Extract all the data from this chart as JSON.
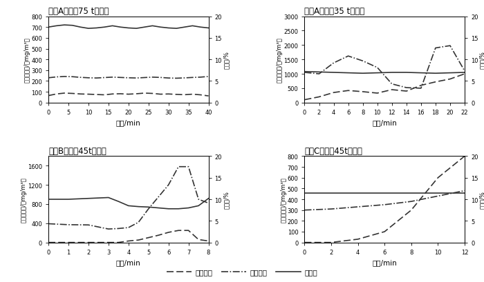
{
  "title_A75": "糖厂A数据（75 t锅炉）",
  "title_A35": "糖厂A数据（35 t锅炉）",
  "title_B45": "糖厂B数据（45t锅炉）",
  "title_C45": "糖厂C数据（45t锅炉）",
  "xlabel": "时间/min",
  "ylabel_left": "污染物浓度/（mg/m³）",
  "ylabel_right": "含氧量/%",
  "A75": {
    "time": [
      0,
      2,
      4,
      6,
      8,
      10,
      12,
      14,
      16,
      18,
      20,
      22,
      24,
      26,
      28,
      30,
      32,
      34,
      36,
      38,
      40
    ],
    "SO2": [
      65,
      80,
      88,
      85,
      80,
      78,
      75,
      72,
      80,
      82,
      78,
      82,
      88,
      85,
      78,
      80,
      76,
      73,
      78,
      72,
      62
    ],
    "CO": [
      230,
      238,
      242,
      240,
      234,
      230,
      228,
      232,
      236,
      233,
      230,
      228,
      232,
      236,
      233,
      228,
      226,
      229,
      233,
      236,
      242
    ],
    "O2": [
      17.5,
      17.8,
      18.0,
      17.9,
      17.5,
      17.2,
      17.3,
      17.5,
      17.8,
      17.5,
      17.3,
      17.2,
      17.5,
      17.8,
      17.5,
      17.3,
      17.2,
      17.5,
      17.8,
      17.5,
      17.3
    ],
    "ylim_left": [
      0,
      800
    ],
    "ylim_right": [
      0,
      20
    ],
    "yticks_left": [
      0,
      100,
      200,
      300,
      400,
      500,
      600,
      700,
      800
    ],
    "yticks_right": [
      0,
      5,
      10,
      15,
      20
    ],
    "xticks": [
      0,
      5,
      10,
      15,
      20,
      25,
      30,
      35,
      40
    ],
    "xlim": [
      0,
      40
    ]
  },
  "A35": {
    "time": [
      0,
      2,
      4,
      6,
      8,
      10,
      12,
      14,
      16,
      18,
      20,
      22
    ],
    "SO2": [
      100,
      200,
      350,
      420,
      380,
      330,
      450,
      400,
      600,
      720,
      820,
      1000
    ],
    "CO": [
      1050,
      1000,
      1380,
      1620,
      1450,
      1220,
      650,
      520,
      500,
      1900,
      1980,
      1100
    ],
    "O2": [
      7.2,
      7.1,
      7.0,
      6.9,
      6.8,
      6.9,
      7.0,
      7.0,
      6.9,
      6.8,
      6.9,
      7.0
    ],
    "ylim_left": [
      0,
      3000
    ],
    "ylim_right": [
      0,
      20
    ],
    "yticks_left": [
      0,
      500,
      1000,
      1500,
      2000,
      2500,
      3000
    ],
    "yticks_right": [
      0,
      5,
      10,
      15,
      20
    ],
    "xticks": [
      0,
      2,
      4,
      6,
      8,
      10,
      12,
      14,
      16,
      18,
      20,
      22
    ],
    "xlim": [
      0,
      22
    ]
  },
  "B45": {
    "time": [
      0,
      1,
      2,
      3,
      3.5,
      4,
      4.5,
      5,
      5.5,
      6,
      6.5,
      7,
      7.5,
      8
    ],
    "SO2": [
      0,
      0,
      0,
      0,
      0,
      30,
      50,
      100,
      150,
      210,
      250,
      250,
      60,
      30
    ],
    "CO": [
      390,
      370,
      365,
      280,
      290,
      310,
      420,
      700,
      950,
      1200,
      1580,
      1580,
      900,
      820
    ],
    "O2": [
      10.0,
      10.0,
      10.2,
      10.4,
      9.5,
      8.5,
      8.3,
      8.2,
      8.0,
      7.8,
      7.8,
      8.0,
      8.5,
      10.2
    ],
    "ylim_left": [
      0,
      1800
    ],
    "ylim_right": [
      0,
      20
    ],
    "yticks_left": [
      0,
      400,
      800,
      1200,
      1600
    ],
    "yticks_right": [
      0,
      5,
      10,
      15,
      20
    ],
    "xticks": [
      0,
      1,
      2,
      3,
      4,
      5,
      6,
      7,
      8
    ],
    "xlim": [
      0,
      8
    ]
  },
  "C45": {
    "time": [
      0,
      2,
      4,
      6,
      8,
      10,
      12
    ],
    "SO2": [
      0,
      0,
      30,
      100,
      300,
      600,
      800
    ],
    "CO": [
      300,
      310,
      330,
      350,
      380,
      430,
      480
    ],
    "O2": [
      11.5,
      11.5,
      11.5,
      11.5,
      11.5,
      11.5,
      11.5
    ],
    "ylim_left": [
      0,
      800
    ],
    "ylim_right": [
      0,
      20
    ],
    "yticks_left": [
      0,
      100,
      200,
      300,
      400,
      500,
      600,
      700,
      800
    ],
    "yticks_right": [
      0,
      5,
      10,
      15,
      20
    ],
    "xticks": [
      0,
      2,
      4,
      6,
      8,
      10,
      12
    ],
    "xlim": [
      0,
      12
    ]
  },
  "legend_SO2": "二氧化硫",
  "legend_CO": "一氧化碳",
  "legend_O2": "含氧量",
  "line_color": "#333333",
  "line_width": 1.2,
  "font_size": 7.5,
  "title_font_size": 8.5
}
